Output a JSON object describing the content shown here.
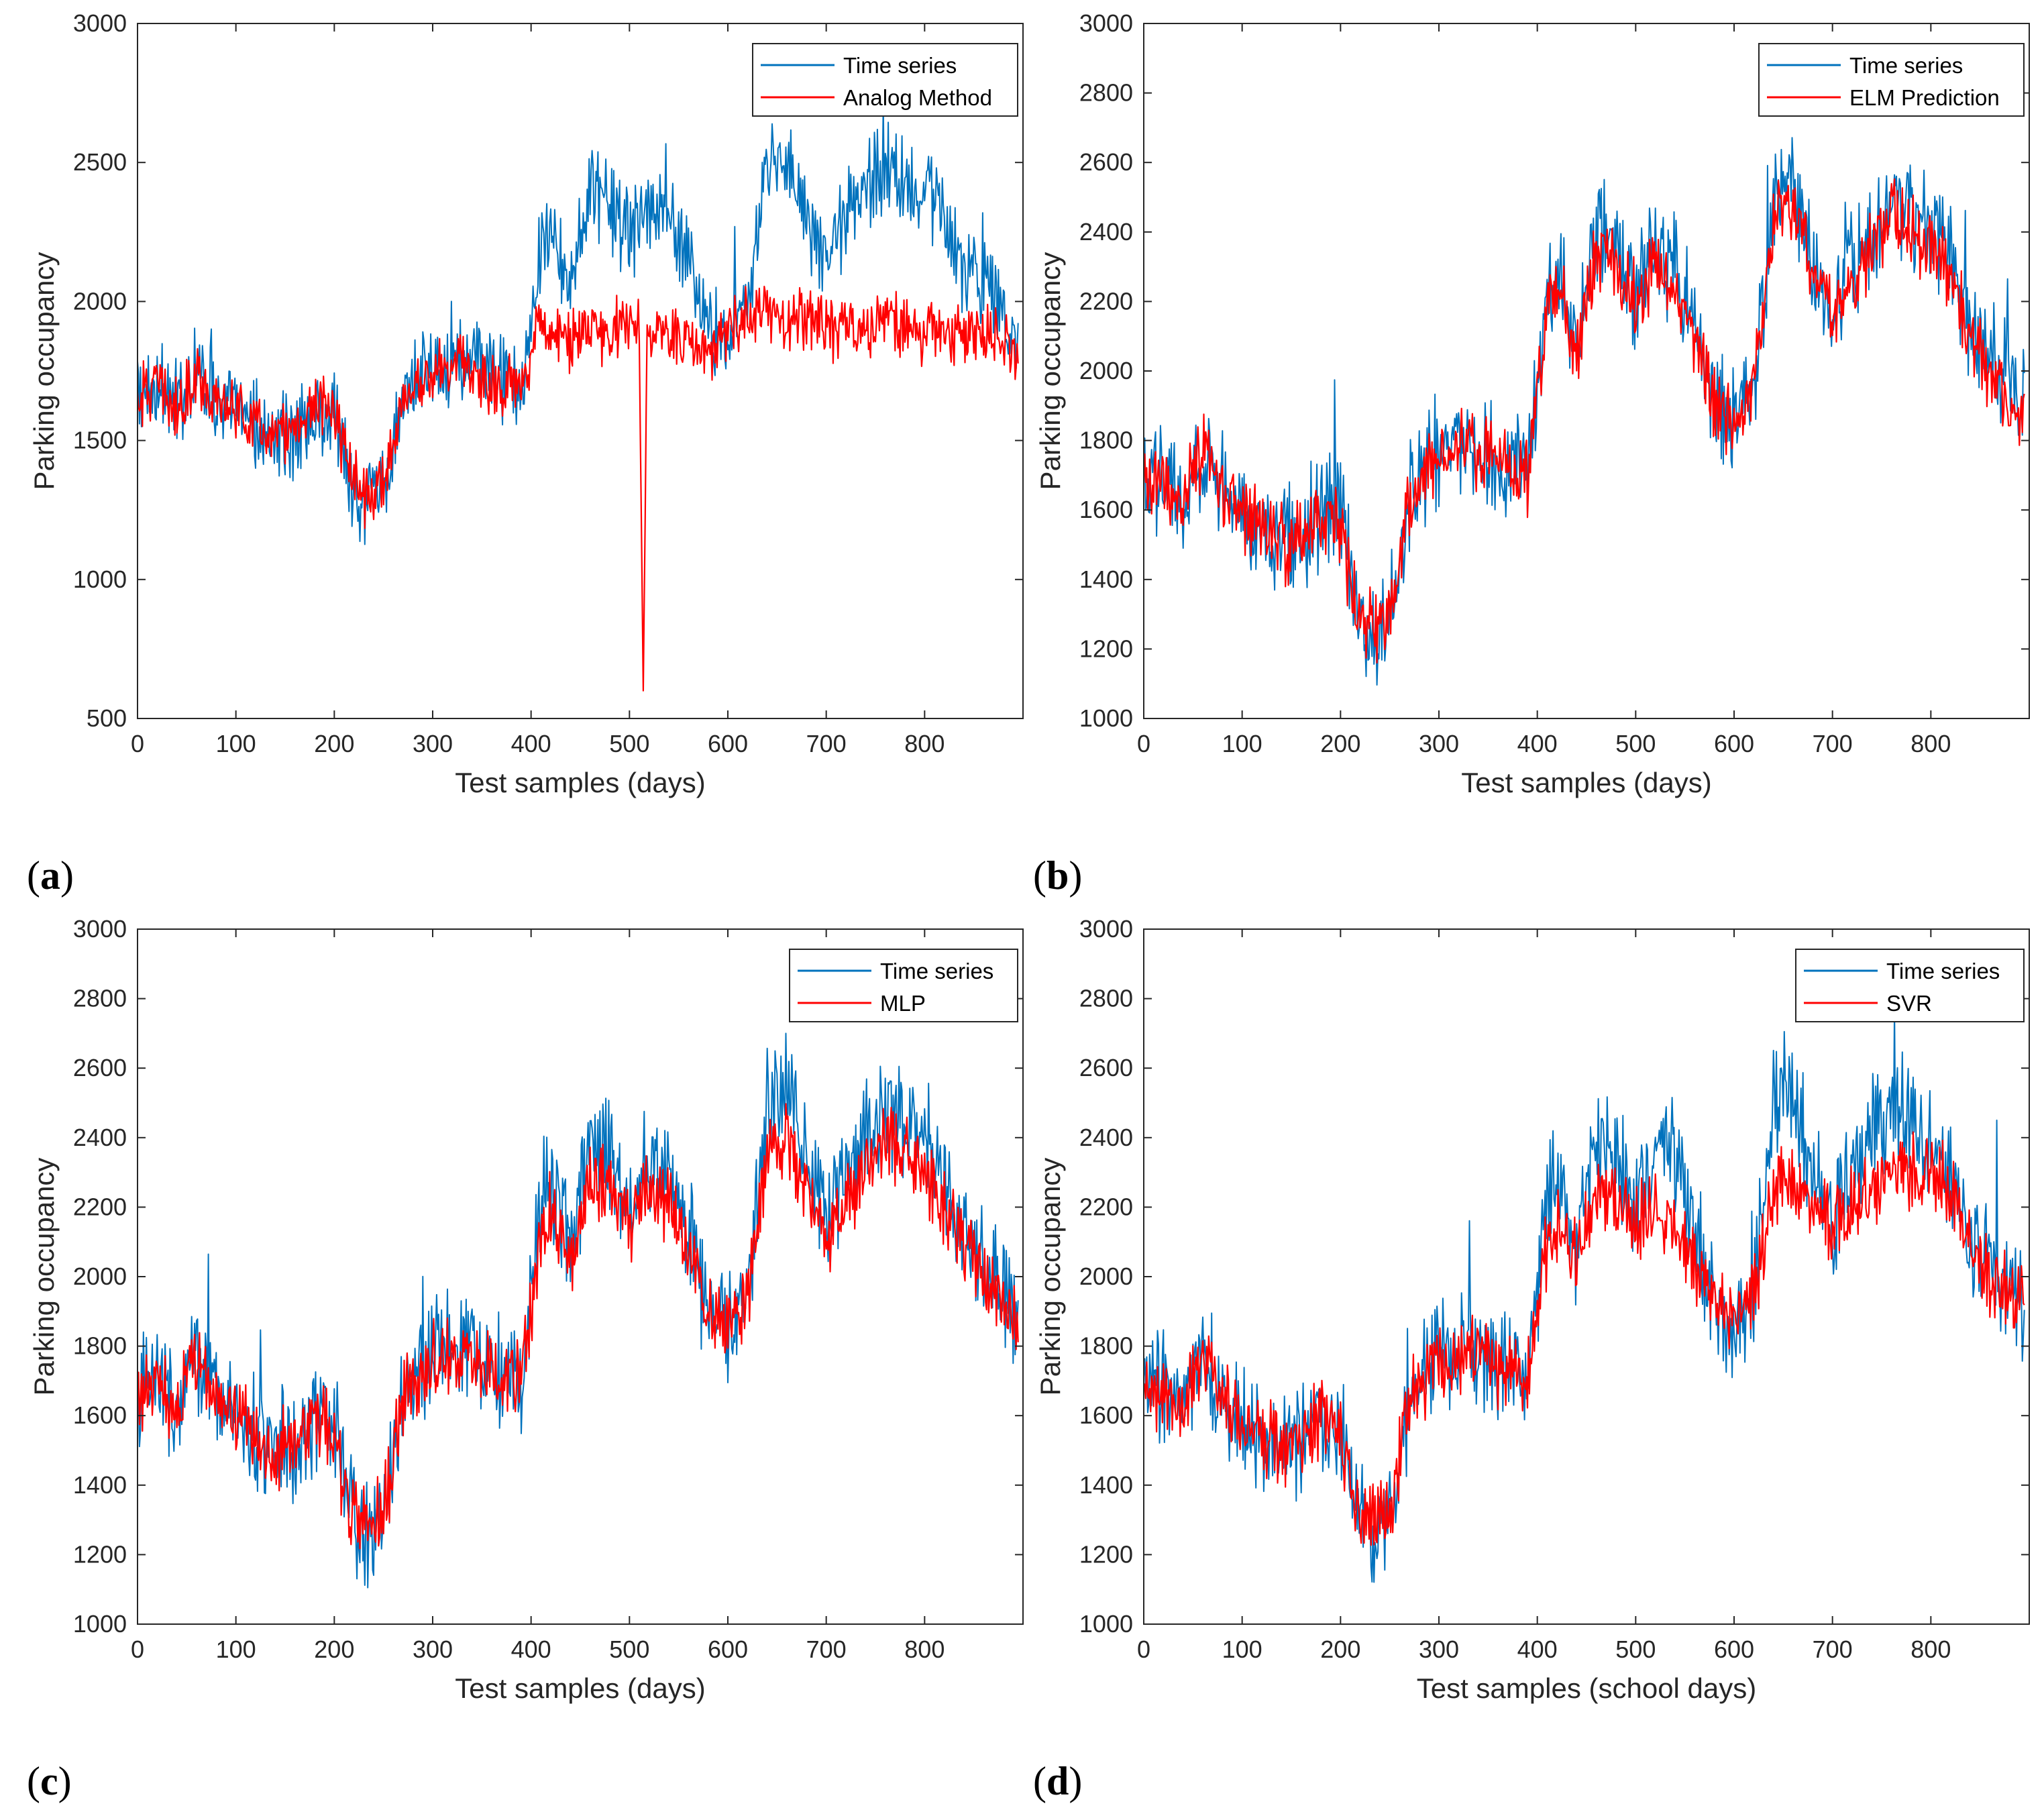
{
  "colors": {
    "timeseries": "#0072BD",
    "prediction": "#FF0000",
    "axis": "#262626"
  },
  "chart_data": [
    {
      "panel": "(a)",
      "panel_letter": "a",
      "type": "line",
      "xlabel": "Test samples (days)",
      "ylabel": "Parking occupancy",
      "xlim": [
        0,
        900
      ],
      "ylim": [
        500,
        3000
      ],
      "xticks": [
        0,
        100,
        200,
        300,
        400,
        500,
        600,
        700,
        800
      ],
      "yticks": [
        500,
        1000,
        1500,
        2000,
        2500,
        3000
      ],
      "legend_position": "top-right",
      "series": [
        {
          "name": "Time series",
          "color": "#0072BD",
          "x": [
            0,
            20,
            40,
            60,
            80,
            100,
            120,
            140,
            160,
            180,
            200,
            215,
            230,
            250,
            270,
            300,
            330,
            360,
            390,
            410,
            420,
            440,
            460,
            480,
            500,
            520,
            540,
            560,
            580,
            600,
            620,
            640,
            660,
            680,
            700,
            720,
            740,
            760,
            780,
            800,
            820,
            840,
            860,
            880,
            895
          ],
          "values": [
            1650,
            1700,
            1620,
            1780,
            1650,
            1600,
            1550,
            1500,
            1520,
            1600,
            1580,
            1350,
            1250,
            1320,
            1650,
            1780,
            1800,
            1750,
            1700,
            2200,
            2300,
            2050,
            2400,
            2350,
            2200,
            2350,
            2300,
            2150,
            1900,
            1850,
            1950,
            2500,
            2550,
            2300,
            2150,
            2300,
            2400,
            2500,
            2450,
            2400,
            2300,
            2100,
            2050,
            1950,
            1900
          ]
        },
        {
          "name": "Analog Method",
          "color": "#FF0000",
          "x": [
            0,
            20,
            40,
            60,
            80,
            100,
            120,
            140,
            160,
            180,
            200,
            215,
            230,
            250,
            270,
            300,
            330,
            360,
            390,
            410,
            420,
            440,
            460,
            480,
            500,
            510,
            514,
            518,
            530,
            560,
            580,
            600,
            620,
            640,
            660,
            680,
            700,
            720,
            740,
            760,
            780,
            800,
            820,
            840,
            860,
            880,
            895
          ],
          "values": [
            1650,
            1700,
            1600,
            1750,
            1620,
            1620,
            1550,
            1500,
            1550,
            1620,
            1600,
            1400,
            1280,
            1350,
            1650,
            1750,
            1780,
            1700,
            1700,
            1950,
            1900,
            1850,
            1900,
            1880,
            1950,
            1900,
            600,
            1850,
            1900,
            1850,
            1800,
            1900,
            1950,
            1980,
            1900,
            1950,
            1900,
            1900,
            1900,
            1950,
            1900,
            1880,
            1900,
            1850,
            1900,
            1850,
            1800
          ]
        }
      ]
    },
    {
      "panel": "(b)",
      "panel_letter": "b",
      "type": "line",
      "xlabel": "Test samples (days)",
      "ylabel": "Parking occupancy",
      "xlim": [
        0,
        900
      ],
      "ylim": [
        1000,
        3000
      ],
      "xticks": [
        0,
        100,
        200,
        300,
        400,
        500,
        600,
        700,
        800
      ],
      "yticks": [
        1000,
        1200,
        1400,
        1600,
        1800,
        2000,
        2200,
        2400,
        2600,
        2800,
        3000
      ],
      "legend_position": "top-right",
      "series": [
        {
          "name": "Time series",
          "color": "#0072BD",
          "x": [
            0,
            20,
            40,
            60,
            80,
            100,
            120,
            140,
            160,
            180,
            200,
            215,
            230,
            250,
            270,
            300,
            330,
            360,
            390,
            410,
            420,
            440,
            460,
            480,
            500,
            520,
            540,
            560,
            580,
            600,
            620,
            640,
            660,
            680,
            700,
            720,
            740,
            760,
            780,
            800,
            820,
            840,
            860,
            880,
            895
          ],
          "values": [
            1650,
            1700,
            1620,
            1780,
            1650,
            1600,
            1550,
            1500,
            1520,
            1600,
            1580,
            1350,
            1250,
            1320,
            1650,
            1780,
            1800,
            1750,
            1700,
            2200,
            2300,
            2050,
            2400,
            2350,
            2200,
            2350,
            2300,
            2150,
            1900,
            1850,
            1950,
            2500,
            2550,
            2300,
            2150,
            2300,
            2400,
            2500,
            2450,
            2400,
            2300,
            2100,
            2050,
            1950,
            1900
          ]
        },
        {
          "name": "ELM Prediction",
          "color": "#FF0000",
          "x": [
            0,
            20,
            40,
            60,
            80,
            100,
            120,
            140,
            160,
            180,
            200,
            215,
            230,
            250,
            270,
            300,
            330,
            360,
            390,
            410,
            420,
            440,
            460,
            480,
            500,
            520,
            540,
            560,
            580,
            600,
            620,
            640,
            660,
            680,
            700,
            720,
            740,
            760,
            780,
            800,
            820,
            840,
            860,
            880,
            895
          ],
          "values": [
            1650,
            1680,
            1620,
            1760,
            1640,
            1600,
            1550,
            1500,
            1520,
            1600,
            1560,
            1320,
            1260,
            1320,
            1640,
            1760,
            1780,
            1740,
            1700,
            2150,
            2250,
            2050,
            2350,
            2300,
            2200,
            2300,
            2250,
            2100,
            1900,
            1850,
            1950,
            2450,
            2500,
            2300,
            2150,
            2250,
            2350,
            2450,
            2400,
            2350,
            2250,
            2100,
            2000,
            1900,
            1900
          ]
        }
      ]
    },
    {
      "panel": "(c)",
      "panel_letter": "c",
      "type": "line",
      "xlabel": "Test samples (days)",
      "ylabel": "Parking occupancy",
      "xlim": [
        0,
        900
      ],
      "ylim": [
        1000,
        3000
      ],
      "xticks": [
        0,
        100,
        200,
        300,
        400,
        500,
        600,
        700,
        800
      ],
      "yticks": [
        1000,
        1200,
        1400,
        1600,
        1800,
        2000,
        2200,
        2400,
        2600,
        2800,
        3000
      ],
      "legend_position": "top-right",
      "series": [
        {
          "name": "Time series",
          "color": "#0072BD",
          "x": [
            0,
            20,
            40,
            60,
            80,
            100,
            120,
            140,
            160,
            180,
            200,
            215,
            230,
            250,
            270,
            300,
            330,
            360,
            390,
            410,
            420,
            440,
            460,
            480,
            500,
            520,
            540,
            560,
            580,
            600,
            620,
            640,
            660,
            680,
            700,
            720,
            740,
            760,
            780,
            800,
            820,
            840,
            860,
            880,
            895
          ],
          "values": [
            1650,
            1700,
            1620,
            1780,
            1650,
            1600,
            1550,
            1500,
            1520,
            1600,
            1580,
            1350,
            1250,
            1320,
            1650,
            1780,
            1800,
            1750,
            1700,
            2200,
            2300,
            2050,
            2400,
            2350,
            2200,
            2350,
            2300,
            2150,
            1900,
            1850,
            1950,
            2500,
            2550,
            2300,
            2150,
            2300,
            2400,
            2500,
            2450,
            2400,
            2300,
            2100,
            2050,
            1950,
            1900
          ]
        },
        {
          "name": "MLP",
          "color": "#FF0000",
          "x": [
            0,
            20,
            40,
            60,
            80,
            100,
            120,
            140,
            160,
            180,
            200,
            215,
            230,
            250,
            270,
            300,
            330,
            360,
            390,
            410,
            420,
            440,
            460,
            480,
            500,
            520,
            540,
            560,
            580,
            600,
            620,
            640,
            660,
            680,
            700,
            720,
            740,
            760,
            780,
            800,
            820,
            840,
            860,
            880,
            895
          ],
          "values": [
            1650,
            1680,
            1620,
            1760,
            1650,
            1600,
            1550,
            1500,
            1530,
            1600,
            1560,
            1300,
            1280,
            1320,
            1640,
            1760,
            1780,
            1740,
            1700,
            2100,
            2200,
            2050,
            2300,
            2250,
            2150,
            2250,
            2200,
            2100,
            1900,
            1850,
            1950,
            2350,
            2400,
            2250,
            2100,
            2200,
            2300,
            2400,
            2350,
            2300,
            2200,
            2100,
            2000,
            1900,
            1900
          ]
        }
      ]
    },
    {
      "panel": "(d)",
      "panel_letter": "d",
      "type": "line",
      "xlabel": "Test samples (school days)",
      "ylabel": "Parking occupancy",
      "xlim": [
        0,
        900
      ],
      "ylim": [
        1000,
        3000
      ],
      "xticks": [
        0,
        100,
        200,
        300,
        400,
        500,
        600,
        700,
        800
      ],
      "yticks": [
        1000,
        1200,
        1400,
        1600,
        1800,
        2000,
        2200,
        2400,
        2600,
        2800,
        3000
      ],
      "legend_position": "top-right",
      "series": [
        {
          "name": "Time series",
          "color": "#0072BD",
          "x": [
            0,
            20,
            40,
            60,
            80,
            100,
            120,
            140,
            160,
            180,
            200,
            215,
            230,
            250,
            270,
            300,
            330,
            360,
            390,
            410,
            420,
            440,
            460,
            480,
            500,
            520,
            540,
            560,
            580,
            600,
            620,
            640,
            660,
            680,
            700,
            720,
            740,
            760,
            780,
            800,
            820,
            840,
            860,
            880,
            895
          ],
          "values": [
            1650,
            1700,
            1620,
            1780,
            1650,
            1600,
            1550,
            1500,
            1520,
            1600,
            1580,
            1350,
            1250,
            1320,
            1650,
            1780,
            1800,
            1750,
            1700,
            2200,
            2300,
            2050,
            2400,
            2350,
            2200,
            2350,
            2300,
            2150,
            1900,
            1850,
            1950,
            2500,
            2550,
            2300,
            2150,
            2300,
            2400,
            2500,
            2450,
            2400,
            2300,
            2100,
            2050,
            1950,
            1900
          ]
        },
        {
          "name": "SVR",
          "color": "#FF0000",
          "x": [
            0,
            20,
            40,
            60,
            80,
            100,
            120,
            140,
            160,
            180,
            200,
            215,
            230,
            250,
            270,
            300,
            330,
            360,
            390,
            410,
            420,
            440,
            460,
            480,
            500,
            520,
            540,
            560,
            580,
            600,
            620,
            640,
            660,
            680,
            700,
            720,
            740,
            760,
            780,
            800,
            820,
            840,
            860,
            880,
            895
          ],
          "values": [
            1650,
            1680,
            1620,
            1760,
            1650,
            1600,
            1550,
            1510,
            1530,
            1600,
            1560,
            1320,
            1280,
            1320,
            1640,
            1760,
            1780,
            1740,
            1700,
            2100,
            2150,
            2050,
            2250,
            2200,
            2150,
            2200,
            2150,
            2050,
            1920,
            1880,
            1950,
            2250,
            2300,
            2200,
            2150,
            2200,
            2250,
            2300,
            2300,
            2300,
            2250,
            2100,
            2000,
            1950,
            1950
          ]
        }
      ]
    }
  ]
}
